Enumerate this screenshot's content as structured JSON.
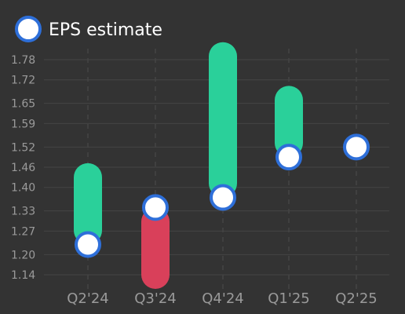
{
  "chart_data": {
    "type": "eps-earnings",
    "legend": {
      "label": "EPS estimate",
      "placement": "top-left"
    },
    "categories": [
      "Q2'24",
      "Q3'24",
      "Q4'24",
      "Q1'25",
      "Q2'25"
    ],
    "estimates": [
      1.23,
      1.34,
      1.37,
      1.49,
      1.52
    ],
    "actuals": [
      1.43,
      1.14,
      1.79,
      1.66,
      null
    ],
    "y_ticks": [
      "1.14",
      "1.20",
      "1.27",
      "1.33",
      "1.40",
      "1.46",
      "1.52",
      "1.59",
      "1.65",
      "1.72",
      "1.78"
    ],
    "ylim": [
      1.1,
      1.82
    ],
    "grid": true,
    "colors": {
      "background": "#333333",
      "grid": "#444444",
      "beat": "#2ad09a",
      "miss": "#d9405a",
      "estimate_fill": "#ffffff",
      "estimate_stroke": "#2e6fd9",
      "tick_text": "#9a9a9a",
      "legend_text": "#ffffff"
    }
  }
}
